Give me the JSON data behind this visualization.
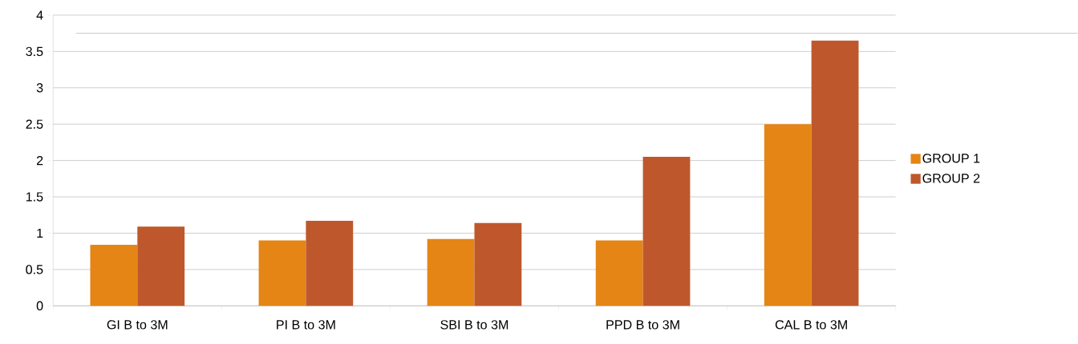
{
  "chart_data": {
    "type": "bar",
    "categories": [
      "GI B to 3M",
      "PI  B  to 3M",
      "SBI B to 3M",
      "PPD B to 3M",
      "CAL B to 3M"
    ],
    "series": [
      {
        "name": "GROUP 1",
        "color": "#e58515",
        "values": [
          0.84,
          0.9,
          0.92,
          0.9,
          2.5
        ]
      },
      {
        "name": "GROUP 2",
        "color": "#be582c",
        "values": [
          1.09,
          1.17,
          1.14,
          2.05,
          3.65
        ]
      }
    ],
    "ylim": [
      0,
      4
    ],
    "yticks": [
      0,
      0.5,
      1,
      1.5,
      2,
      2.5,
      3,
      3.5,
      4
    ],
    "ref_lines": [
      {
        "axis": "y",
        "value": 3.75,
        "color": "#bcbcbc"
      }
    ],
    "grid": "y",
    "legend": "right"
  }
}
